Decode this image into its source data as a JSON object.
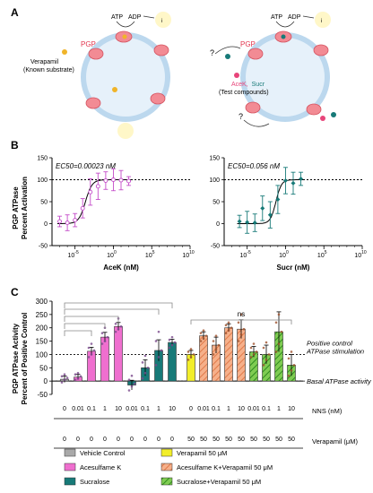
{
  "panels": {
    "a": "A",
    "b": "B",
    "c": "C"
  },
  "panel_a": {
    "left": {
      "atp_label": "ATP",
      "adp_label": "ADP",
      "pi_label": "i",
      "pgp_label": "PGP",
      "substrate_line1": "Verapamil",
      "substrate_line2": "(Known substrate)",
      "substrate_color": "#f0b429"
    },
    "right": {
      "atp_label": "ATP",
      "adp_label": "ADP",
      "pi_label": "i",
      "pgp_label": "PGP",
      "question_mark": "?",
      "test_acek": "AceK,",
      "test_sucr": "Sucr",
      "test_line2": "(Test compounds)",
      "acek_color": "#e8457a",
      "sucr_color": "#177a78"
    },
    "membrane_color": "#bcd8ee",
    "pgp_color": "#f28b94"
  },
  "chart_data": [
    {
      "type": "scatter",
      "panel": "B-left",
      "annotation": "EC50=0.00023 nM",
      "xlabel": "AceK (nM)",
      "ylabel_line1": "PGP ATPase",
      "ylabel_line2": "Percent Activation",
      "xscale": "log",
      "xlim": [
        1e-08,
        10000000000.0
      ],
      "ylim": [
        -50,
        150
      ],
      "yticks": [
        -50,
        0,
        50,
        100,
        150
      ],
      "xtick_labels": [
        {
          "exp": -5,
          "label": "10",
          "sup": "-5"
        },
        {
          "exp": 0,
          "label": "10",
          "sup": "0"
        },
        {
          "exp": 5,
          "label": "10",
          "sup": "5"
        },
        {
          "exp": 10,
          "label": "10",
          "sup": "10"
        }
      ],
      "reference_line": 100,
      "color": "#c44cc9",
      "points": [
        {
          "x": 1e-07,
          "y": 5,
          "err": 12
        },
        {
          "x": 1e-06,
          "y": 2,
          "err": 18
        },
        {
          "x": 1e-05,
          "y": 8,
          "err": 15
        },
        {
          "x": 0.0001,
          "y": 35,
          "err": 22
        },
        {
          "x": 0.001,
          "y": 72,
          "err": 30
        },
        {
          "x": 0.01,
          "y": 85,
          "err": 30
        },
        {
          "x": 0.1,
          "y": 98,
          "err": 20
        },
        {
          "x": 1,
          "y": 100,
          "err": 25
        },
        {
          "x": 10,
          "y": 99,
          "err": 22
        },
        {
          "x": 100,
          "y": 97,
          "err": 10
        }
      ],
      "fit": {
        "bottom": 0,
        "top": 100,
        "ec50": 0.00023,
        "hill": 1
      }
    },
    {
      "type": "scatter",
      "panel": "B-right",
      "annotation": "EC50=0.056 nM",
      "xlabel": "Sucr (nM)",
      "xscale": "log",
      "xlim": [
        1e-08,
        10000000000.0
      ],
      "ylim": [
        -50,
        150
      ],
      "yticks": [
        -50,
        0,
        50,
        100,
        150
      ],
      "xtick_labels": [
        {
          "exp": -5,
          "label": "10",
          "sup": "-5"
        },
        {
          "exp": 0,
          "label": "10",
          "sup": "0"
        },
        {
          "exp": 5,
          "label": "10",
          "sup": "5"
        },
        {
          "exp": 10,
          "label": "10",
          "sup": "10"
        }
      ],
      "reference_line": 100,
      "color": "#177a78",
      "points": [
        {
          "x": 1e-06,
          "y": 5,
          "err": 14
        },
        {
          "x": 1e-05,
          "y": 3,
          "err": 25
        },
        {
          "x": 0.0001,
          "y": 2,
          "err": 20
        },
        {
          "x": 0.001,
          "y": 35,
          "err": 28
        },
        {
          "x": 0.01,
          "y": 20,
          "err": 30
        },
        {
          "x": 0.1,
          "y": 55,
          "err": 32
        },
        {
          "x": 1,
          "y": 98,
          "err": 30
        },
        {
          "x": 10,
          "y": 92,
          "err": 25
        },
        {
          "x": 100,
          "y": 102,
          "err": 15
        }
      ],
      "fit": {
        "bottom": 0,
        "top": 100,
        "ec50": 0.056,
        "hill": 1.2
      }
    },
    {
      "type": "bar",
      "panel": "C",
      "ylabel_line1": "PGP ATPase Activity",
      "ylabel_line2": "Percent of Positive Control",
      "ylim": [
        -50,
        300
      ],
      "yticks": [
        -50,
        0,
        50,
        100,
        150,
        200,
        250,
        300
      ],
      "reference_line": 100,
      "ref_annotation_line1": "Positive control",
      "ref_annotation_line2": "ATPase stimulation",
      "basal_annotation": "Basal ATPase activity",
      "ns_label": "ns",
      "row_labels": {
        "nns": "NNS (nM)",
        "verapamil": "Verapamil (μM)"
      },
      "groups": [
        {
          "nns": "0",
          "verapamil": "0",
          "value": 7,
          "err": 12,
          "fill": "#a9a9a9",
          "hatch": false,
          "pts": [
            -5,
            5,
            12,
            18,
            25
          ]
        },
        {
          "nns": "0.01",
          "verapamil": "0",
          "value": 15,
          "err": 10,
          "fill": "#ef6fcf",
          "hatch": false,
          "pts": [
            5,
            10,
            18,
            25,
            30
          ]
        },
        {
          "nns": "0.1",
          "verapamil": "0",
          "value": 112,
          "err": 15,
          "fill": "#ef6fcf",
          "hatch": false,
          "pts": [
            90,
            100,
            115,
            125,
            140
          ]
        },
        {
          "nns": "1",
          "verapamil": "0",
          "value": 165,
          "err": 18,
          "fill": "#ef6fcf",
          "hatch": false,
          "pts": [
            140,
            150,
            165,
            180,
            200
          ]
        },
        {
          "nns": "10",
          "verapamil": "0",
          "value": 205,
          "err": 15,
          "fill": "#ef6fcf",
          "hatch": false,
          "pts": [
            185,
            195,
            205,
            215,
            235
          ]
        },
        {
          "nns": "0.01",
          "verapamil": "0",
          "value": -15,
          "err": 18,
          "fill": "#177a78",
          "hatch": false,
          "pts": [
            -35,
            -20,
            -10,
            5,
            20
          ]
        },
        {
          "nns": "0.1",
          "verapamil": "0",
          "value": 50,
          "err": 30,
          "fill": "#177a78",
          "hatch": false,
          "pts": [
            10,
            30,
            50,
            70,
            95
          ]
        },
        {
          "nns": "1",
          "verapamil": "0",
          "value": 115,
          "err": 40,
          "fill": "#177a78",
          "hatch": false,
          "pts": [
            60,
            90,
            115,
            150,
            185
          ]
        },
        {
          "nns": "10",
          "verapamil": "0",
          "value": 145,
          "err": 12,
          "fill": "#177a78",
          "hatch": false,
          "pts": [
            125,
            135,
            145,
            155,
            165
          ]
        },
        {
          "nns": "0",
          "verapamil": "50",
          "value": 100,
          "err": 15,
          "fill": "#f2ee2a",
          "hatch": false,
          "pts": [
            80,
            90,
            100,
            110,
            120
          ]
        },
        {
          "nns": "0.01",
          "verapamil": "50",
          "value": 170,
          "err": 15,
          "fill": "#f6b08a",
          "hatch": true,
          "pts": [
            150,
            160,
            170,
            180,
            190
          ]
        },
        {
          "nns": "0.1",
          "verapamil": "50",
          "value": 135,
          "err": 30,
          "fill": "#f6b08a",
          "hatch": true,
          "pts": [
            100,
            120,
            135,
            150,
            170
          ]
        },
        {
          "nns": "1",
          "verapamil": "50",
          "value": 200,
          "err": 15,
          "fill": "#f6b08a",
          "hatch": true,
          "pts": [
            180,
            190,
            200,
            210,
            220
          ]
        },
        {
          "nns": "10",
          "verapamil": "50",
          "value": 195,
          "err": 35,
          "fill": "#f6b08a",
          "hatch": true,
          "pts": [
            150,
            175,
            195,
            220,
            250
          ]
        },
        {
          "nns": "0.01",
          "verapamil": "50",
          "value": 110,
          "err": 20,
          "fill": "#7fcc52",
          "hatch": true,
          "pts": [
            90,
            100,
            110,
            125,
            140
          ]
        },
        {
          "nns": "0.1",
          "verapamil": "50",
          "value": 100,
          "err": 35,
          "fill": "#7fcc52",
          "hatch": true,
          "pts": [
            60,
            80,
            100,
            125,
            145
          ]
        },
        {
          "nns": "1",
          "verapamil": "50",
          "value": 185,
          "err": 75,
          "fill": "#7fcc52",
          "hatch": true,
          "pts": [
            110,
            140,
            185,
            220,
            250
          ]
        },
        {
          "nns": "10",
          "verapamil": "50",
          "value": 60,
          "err": 40,
          "fill": "#7fcc52",
          "hatch": true,
          "pts": [
            20,
            40,
            60,
            85,
            110
          ]
        }
      ],
      "legend": [
        {
          "label": "Vehicle Control",
          "fill": "#a9a9a9",
          "hatch": false
        },
        {
          "label": "Verapamil 50 μM",
          "fill": "#f2ee2a",
          "hatch": false
        },
        {
          "label": "Acesulfame K",
          "fill": "#ef6fcf",
          "hatch": false
        },
        {
          "label": "Acesulfame K+Verapamil 50 μM",
          "fill": "#f6b08a",
          "hatch": true
        },
        {
          "label": "Sucralose",
          "fill": "#177a78",
          "hatch": false
        },
        {
          "label": "Sucralose+Verapamil 50 μM",
          "fill": "#7fcc52",
          "hatch": true
        }
      ]
    }
  ]
}
